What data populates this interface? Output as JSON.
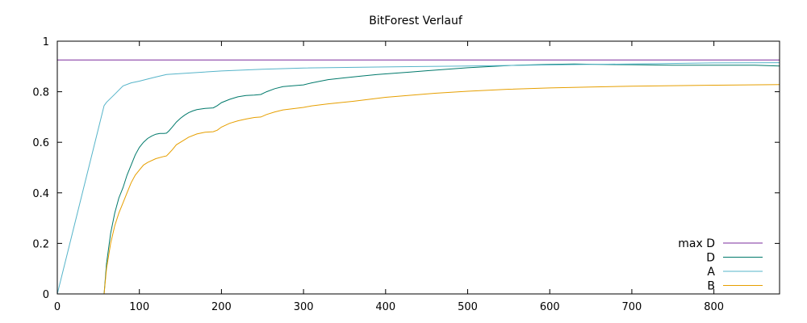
{
  "chart_data": {
    "type": "line",
    "title": "BitForest Verlauf",
    "xlabel": "",
    "ylabel": "",
    "xlim": [
      0,
      880
    ],
    "ylim": [
      0,
      1
    ],
    "x_ticks": [
      0,
      100,
      200,
      300,
      400,
      500,
      600,
      700,
      800
    ],
    "y_ticks": [
      0,
      0.2,
      0.4,
      0.6,
      0.8,
      1
    ],
    "x_tick_labels": [
      "0",
      "100",
      "200",
      "300",
      "400",
      "500",
      "600",
      "700",
      "800"
    ],
    "y_tick_labels": [
      "0",
      "0.2",
      "0.4",
      "0.6",
      "0.8",
      "1"
    ],
    "grid": false,
    "legend_position": "bottom-right",
    "series": [
      {
        "name": "max D",
        "color": "#7b2d9e",
        "x": [
          0,
          880
        ],
        "y": [
          0.926,
          0.926
        ]
      },
      {
        "name": "D",
        "color": "#00796b",
        "x": [
          57,
          60,
          65,
          70,
          75,
          80,
          85,
          90,
          95,
          100,
          105,
          110,
          115,
          120,
          125,
          130,
          133,
          136,
          140,
          145,
          150,
          155,
          160,
          165,
          170,
          180,
          190,
          195,
          200,
          210,
          220,
          230,
          240,
          248,
          255,
          265,
          275,
          285,
          300,
          310,
          330,
          350,
          370,
          390,
          410,
          430,
          450,
          470,
          500,
          530,
          560,
          600,
          630,
          660,
          700,
          750,
          800,
          850,
          880
        ],
        "y": [
          0.0,
          0.12,
          0.24,
          0.32,
          0.38,
          0.42,
          0.47,
          0.51,
          0.55,
          0.58,
          0.6,
          0.615,
          0.625,
          0.632,
          0.635,
          0.635,
          0.636,
          0.645,
          0.66,
          0.68,
          0.695,
          0.707,
          0.717,
          0.724,
          0.729,
          0.734,
          0.736,
          0.745,
          0.757,
          0.77,
          0.78,
          0.785,
          0.787,
          0.789,
          0.8,
          0.812,
          0.82,
          0.823,
          0.827,
          0.835,
          0.848,
          0.855,
          0.862,
          0.868,
          0.873,
          0.878,
          0.883,
          0.888,
          0.895,
          0.9,
          0.905,
          0.908,
          0.91,
          0.908,
          0.907,
          0.905,
          0.905,
          0.905,
          0.902
        ]
      },
      {
        "name": "A",
        "color": "#56b4c9",
        "x": [
          0,
          57,
          60,
          70,
          80,
          90,
          100,
          110,
          120,
          133,
          150,
          200,
          250,
          300,
          400,
          500,
          600,
          700,
          800,
          880
        ],
        "y": [
          0.0,
          0.745,
          0.758,
          0.79,
          0.823,
          0.835,
          0.842,
          0.85,
          0.858,
          0.868,
          0.872,
          0.882,
          0.889,
          0.894,
          0.898,
          0.902,
          0.906,
          0.91,
          0.914,
          0.915
        ]
      },
      {
        "name": "B",
        "color": "#e69f00",
        "x": [
          57,
          60,
          65,
          70,
          75,
          80,
          85,
          90,
          95,
          100,
          105,
          110,
          120,
          130,
          133,
          136,
          140,
          145,
          150,
          160,
          170,
          180,
          190,
          195,
          200,
          210,
          220,
          230,
          240,
          248,
          255,
          265,
          275,
          285,
          300,
          310,
          330,
          360,
          380,
          400,
          430,
          460,
          500,
          550,
          600,
          650,
          700,
          750,
          800,
          880
        ],
        "y": [
          0.0,
          0.1,
          0.2,
          0.27,
          0.32,
          0.36,
          0.4,
          0.44,
          0.47,
          0.49,
          0.51,
          0.52,
          0.535,
          0.544,
          0.546,
          0.556,
          0.57,
          0.59,
          0.6,
          0.62,
          0.633,
          0.64,
          0.642,
          0.648,
          0.66,
          0.675,
          0.685,
          0.692,
          0.698,
          0.7,
          0.71,
          0.72,
          0.728,
          0.732,
          0.738,
          0.744,
          0.752,
          0.762,
          0.77,
          0.778,
          0.786,
          0.794,
          0.802,
          0.81,
          0.815,
          0.819,
          0.822,
          0.824,
          0.826,
          0.828
        ]
      }
    ]
  }
}
